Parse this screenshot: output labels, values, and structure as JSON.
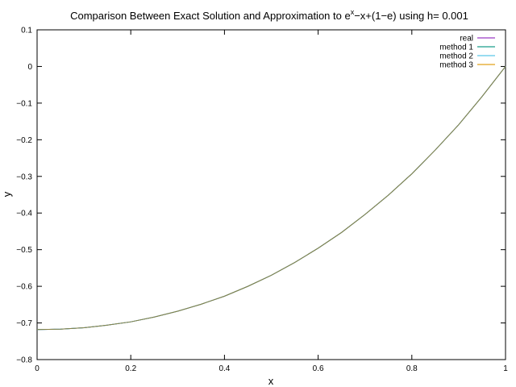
{
  "chart_data": {
    "type": "line",
    "title": {
      "prefix": "Comparison Between Exact Solution and Approximation to e",
      "superscript": "x",
      "suffix": "−x+(1−e) using h= 0.001"
    },
    "xlabel": "x",
    "ylabel": "y",
    "xlim": [
      0,
      1
    ],
    "ylim": [
      -0.8,
      0.1
    ],
    "x_ticks": [
      0,
      0.2,
      0.4,
      0.6,
      0.8,
      1
    ],
    "x_tick_labels": [
      "0",
      "0.2",
      "0.4",
      "0.6",
      "0.8",
      "1"
    ],
    "y_ticks": [
      0.1,
      0,
      -0.1,
      -0.2,
      -0.3,
      -0.4,
      -0.5,
      -0.6,
      -0.7,
      -0.8
    ],
    "y_tick_labels": [
      "0.1",
      "0",
      "−0.1",
      "−0.2",
      "−0.3",
      "−0.4",
      "−0.5",
      "−0.6",
      "−0.7",
      "−0.8"
    ],
    "grid": false,
    "legend_position": "top-right",
    "x": [
      0,
      0.05,
      0.1,
      0.15,
      0.2,
      0.25,
      0.3,
      0.35,
      0.4,
      0.45,
      0.5,
      0.55,
      0.6,
      0.65,
      0.7,
      0.75,
      0.8,
      0.85,
      0.9,
      0.95,
      1
    ],
    "series": [
      {
        "name": "real",
        "color": "#9a3bc4",
        "values": [
          -0.718,
          -0.717,
          -0.713,
          -0.706,
          -0.697,
          -0.684,
          -0.668,
          -0.649,
          -0.627,
          -0.6,
          -0.57,
          -0.535,
          -0.496,
          -0.453,
          -0.404,
          -0.351,
          -0.293,
          -0.228,
          -0.159,
          -0.082,
          0.0
        ]
      },
      {
        "name": "method 1",
        "color": "#1a9e8a",
        "values": [
          -0.718,
          -0.717,
          -0.713,
          -0.706,
          -0.697,
          -0.684,
          -0.668,
          -0.649,
          -0.627,
          -0.6,
          -0.57,
          -0.535,
          -0.496,
          -0.453,
          -0.404,
          -0.351,
          -0.293,
          -0.228,
          -0.159,
          -0.082,
          0.0
        ]
      },
      {
        "name": "method 2",
        "color": "#5bc8e6",
        "values": [
          -0.718,
          -0.717,
          -0.713,
          -0.706,
          -0.697,
          -0.684,
          -0.668,
          -0.649,
          -0.627,
          -0.6,
          -0.57,
          -0.535,
          -0.496,
          -0.453,
          -0.404,
          -0.351,
          -0.293,
          -0.228,
          -0.159,
          -0.082,
          0.0
        ]
      },
      {
        "name": "method 3",
        "color": "#e2a21a",
        "values": [
          -0.718,
          -0.717,
          -0.713,
          -0.706,
          -0.697,
          -0.684,
          -0.668,
          -0.649,
          -0.627,
          -0.6,
          -0.57,
          -0.535,
          -0.496,
          -0.453,
          -0.404,
          -0.351,
          -0.293,
          -0.228,
          -0.159,
          -0.082,
          0.0
        ]
      }
    ],
    "visible_line_color": "#8a8042"
  }
}
